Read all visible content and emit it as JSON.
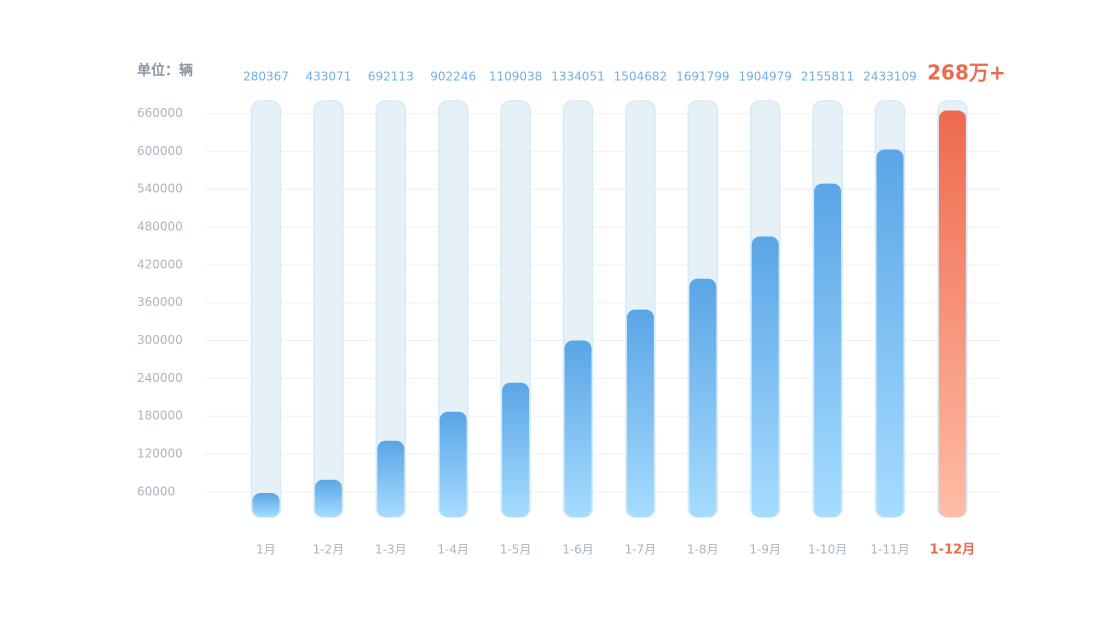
{
  "chart_data": {
    "type": "bar",
    "unit_label": "单位：辆",
    "categories": [
      "1月",
      "1-2月",
      "1-3月",
      "1-4月",
      "1-5月",
      "1-6月",
      "1-7月",
      "1-8月",
      "1-9月",
      "1-10月",
      "1-11月",
      "1-12月"
    ],
    "values": [
      58000,
      79000,
      141000,
      187000,
      233000,
      300000,
      349000,
      398000,
      465000,
      549000,
      603000,
      665000
    ],
    "top_labels": [
      280367,
      433071,
      692113,
      902246,
      1109038,
      1334051,
      1504682,
      1691799,
      1904979,
      2155811,
      2433109,
      "268万+"
    ],
    "color": [
      "#5aa5e6",
      "#a6dcff"
    ],
    "highlight_category": "1-12月",
    "highlight_color": [
      "#ee6a4e",
      "#ffbca6"
    ],
    "track_color": "#e6f0f7",
    "ylim": [
      20000,
      680000
    ],
    "yticks": [
      60000,
      120000,
      180000,
      240000,
      300000,
      360000,
      420000,
      480000,
      540000,
      600000,
      660000
    ],
    "grid": true
  }
}
